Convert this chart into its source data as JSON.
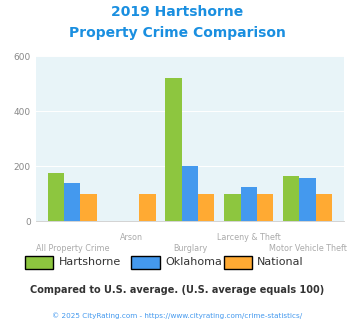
{
  "title_line1": "2019 Hartshorne",
  "title_line2": "Property Crime Comparison",
  "categories": [
    "All Property Crime",
    "Arson",
    "Burglary",
    "Larceny & Theft",
    "Motor Vehicle Theft"
  ],
  "series": {
    "Hartshorne": [
      175,
      0,
      520,
      100,
      165
    ],
    "Oklahoma": [
      140,
      0,
      200,
      125,
      155
    ],
    "National": [
      100,
      100,
      100,
      100,
      100
    ]
  },
  "colors": {
    "Hartshorne": "#8dc63f",
    "Oklahoma": "#4499ee",
    "National": "#ffaa33"
  },
  "ylim": [
    0,
    600
  ],
  "yticks": [
    0,
    200,
    400,
    600
  ],
  "background_color": "#e8f4f8",
  "title_color": "#1a8fe0",
  "tick_color": "#888888",
  "label_color": "#aaaaaa",
  "legend_text_color": "#333333",
  "footer_note": "Compared to U.S. average. (U.S. average equals 100)",
  "footer_credit": "© 2025 CityRating.com - https://www.cityrating.com/crime-statistics/",
  "footer_note_color": "#333333",
  "footer_credit_color": "#4499ee",
  "row1_cats": [
    "Arson",
    "Larceny & Theft"
  ],
  "row2_cats": [
    "All Property Crime",
    "Burglary",
    "Motor Vehicle Theft"
  ]
}
